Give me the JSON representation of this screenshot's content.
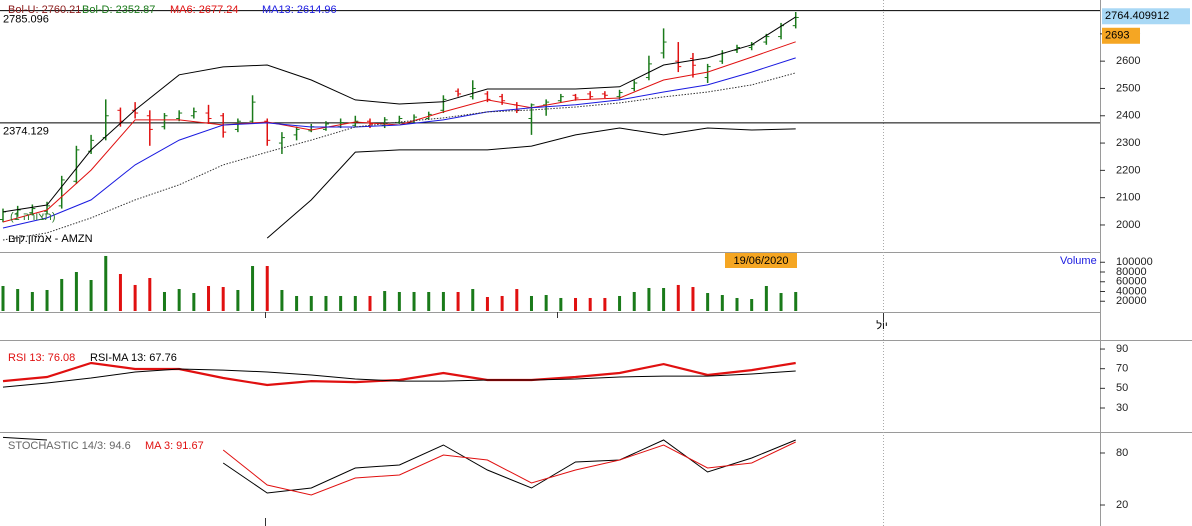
{
  "chart_data": [
    {
      "type": "ohlc",
      "up_color": "#1a7a1a",
      "down_color": "#e01010",
      "open": [
        2020,
        2040,
        2045,
        2050,
        2070,
        2160,
        2270,
        2320,
        2420,
        2420,
        2400,
        2360,
        2390,
        2400,
        2410,
        2400,
        2350,
        2380,
        2380,
        2300,
        2330,
        2345,
        2350,
        2360,
        2365,
        2380,
        2365,
        2375,
        2380,
        2390,
        2420,
        2490,
        2470,
        2480,
        2470,
        2440,
        2390,
        2440,
        2455,
        2475,
        2480,
        2480,
        2470,
        2500,
        2540,
        2630,
        2600,
        2610,
        2540,
        2600,
        2640,
        2650,
        2670,
        2690,
        2730
      ],
      "close": [
        2048,
        2055,
        2060,
        2070,
        2165,
        2275,
        2310,
        2400,
        2380,
        2410,
        2350,
        2400,
        2410,
        2415,
        2390,
        2340,
        2380,
        2450,
        2310,
        2320,
        2350,
        2360,
        2370,
        2375,
        2380,
        2370,
        2385,
        2390,
        2395,
        2405,
        2460,
        2480,
        2500,
        2460,
        2455,
        2420,
        2440,
        2450,
        2470,
        2465,
        2470,
        2475,
        2485,
        2520,
        2590,
        2670,
        2580,
        2585,
        2580,
        2630,
        2650,
        2660,
        2690,
        2730,
        2760
      ],
      "high": [
        2060,
        2070,
        2075,
        2085,
        2180,
        2290,
        2330,
        2460,
        2430,
        2450,
        2420,
        2410,
        2420,
        2430,
        2440,
        2410,
        2390,
        2475,
        2390,
        2340,
        2360,
        2370,
        2380,
        2390,
        2400,
        2390,
        2395,
        2400,
        2405,
        2415,
        2475,
        2500,
        2530,
        2490,
        2480,
        2450,
        2445,
        2460,
        2480,
        2480,
        2490,
        2490,
        2495,
        2530,
        2620,
        2720,
        2670,
        2630,
        2590,
        2640,
        2660,
        2670,
        2700,
        2740,
        2780
      ],
      "low": [
        2010,
        2030,
        2035,
        2040,
        2060,
        2150,
        2260,
        2310,
        2360,
        2390,
        2290,
        2350,
        2380,
        2390,
        2370,
        2320,
        2340,
        2370,
        2290,
        2260,
        2310,
        2340,
        2345,
        2355,
        2360,
        2355,
        2355,
        2370,
        2375,
        2385,
        2410,
        2470,
        2460,
        2450,
        2440,
        2410,
        2330,
        2400,
        2450,
        2455,
        2460,
        2465,
        2460,
        2490,
        2530,
        2610,
        2560,
        2540,
        2520,
        2590,
        2630,
        2640,
        2660,
        2680,
        2720
      ],
      "line_x": [
        0,
        3,
        6,
        9,
        12,
        15,
        18,
        21,
        24,
        27,
        30,
        33,
        36,
        39,
        42,
        45,
        48,
        51,
        54
      ],
      "series": [
        {
          "name": "Bol-U: 2760.21",
          "legend_color": "#8b1a1a",
          "color": "#000000",
          "values": [
            2048,
            2073,
            2275,
            2421,
            2550,
            2579,
            2586,
            2531,
            2458,
            2443,
            2451,
            2498,
            2498,
            2498,
            2506,
            2586,
            2612,
            2660,
            2762
          ]
        },
        {
          "name": "Bol-D: 2352.87",
          "legend_color": "#1a7a1a",
          "color": "#000000",
          "values": [
            null,
            null,
            null,
            null,
            null,
            null,
            1952,
            2092,
            2267,
            2275,
            2275,
            2275,
            2289,
            2330,
            2355,
            2330,
            2355,
            2348,
            2352
          ]
        },
        {
          "name": "MA6: 2677.24",
          "color": "#e01010",
          "values": [
            2011,
            2055,
            2201,
            2385,
            2385,
            2366,
            2377,
            2348,
            2377,
            2366,
            2414,
            2458,
            2429,
            2458,
            2465,
            2531,
            2560,
            2615,
            2671
          ]
        },
        {
          "name": "MA13: 2614.96",
          "color": "#1a1ae0",
          "values": [
            1989,
            2026,
            2092,
            2220,
            2311,
            2366,
            2374,
            2359,
            2359,
            2366,
            2385,
            2414,
            2429,
            2440,
            2458,
            2487,
            2513,
            2560,
            2612
          ]
        },
        {
          "color": "#333333",
          "dash": true,
          "values": [
            1945,
            1971,
            2026,
            2092,
            2147,
            2220,
            2267,
            2311,
            2359,
            2377,
            2392,
            2414,
            2421,
            2432,
            2447,
            2469,
            2487,
            2513,
            2557
          ]
        }
      ],
      "hlines": [
        2785.096,
        2374.129
      ],
      "price_tags": [
        {
          "value": 2764.409912,
          "color": "#a8d8f5"
        },
        {
          "value": 2693,
          "color": "#f5a623"
        }
      ],
      "notes": [
        "(תצורה 1)",
        "אמזון.קום - AMZN"
      ],
      "ylim": [
        1901,
        2824
      ],
      "yticks": [
        2000,
        2100,
        2200,
        2300,
        2400,
        2500,
        2600,
        2700
      ]
    },
    {
      "type": "bar",
      "name": "Volume",
      "date_label": "19/06/2020",
      "xlabel": "יול",
      "values": [
        51300,
        45100,
        39000,
        43100,
        65700,
        80000,
        63600,
        112900,
        75900,
        53400,
        67700,
        39000,
        45100,
        36900,
        51300,
        49200,
        43100,
        92300,
        92300,
        43100,
        30800,
        30800,
        30800,
        30800,
        30800,
        30800,
        41000,
        39000,
        39000,
        39000,
        39000,
        39000,
        45100,
        28700,
        30800,
        45100,
        30800,
        32800,
        26700,
        26700,
        26700,
        26700,
        30800,
        39000,
        47200,
        47200,
        53400,
        49200,
        36900,
        32800,
        26700,
        24600,
        51300,
        36900,
        39000
      ],
      "ylim": [
        0,
        119000
      ],
      "yticks": [
        20000,
        40000,
        60000,
        80000,
        100000
      ]
    },
    {
      "type": "line",
      "line_x": [
        0,
        3,
        6,
        9,
        12,
        15,
        18,
        21,
        24,
        27,
        30,
        33,
        36,
        39,
        42,
        45,
        48,
        51,
        54
      ],
      "series": [
        {
          "name": "RSI 13: 76.08",
          "color": "#e01010",
          "width": 2.2,
          "values": [
            57.4,
            61.5,
            75.8,
            69.7,
            69.7,
            60.5,
            53.4,
            57.4,
            56.4,
            58.5,
            65.6,
            58.5,
            58.5,
            61.5,
            65.6,
            74.7,
            63.6,
            68.6,
            75.8
          ]
        },
        {
          "name": "RSI-MA 13: 67.76",
          "color": "#000000",
          "width": 1,
          "values": [
            51.3,
            55.4,
            60.5,
            66.6,
            69.7,
            68.6,
            66.6,
            63.6,
            59.5,
            57.4,
            57.4,
            58.5,
            58.5,
            59.5,
            61.5,
            62.5,
            62.5,
            64.6,
            67.6
          ]
        }
      ],
      "ylim": [
        7.6,
        99.2
      ],
      "yticks": [
        30,
        50,
        70,
        90
      ]
    },
    {
      "type": "line",
      "line_x": [
        0,
        3,
        6,
        9,
        12,
        15,
        18,
        21,
        24,
        27,
        30,
        33,
        36,
        39,
        42,
        45,
        48,
        51,
        54
      ],
      "series": [
        {
          "name": "STOCHASTIC 14/3: 94.6",
          "legend_color": "#666666",
          "color": "#000000",
          "width": 1,
          "values": [
            98,
            95,
            null,
            77.7,
            null,
            68.5,
            33.9,
            39.6,
            62.7,
            66.2,
            89.2,
            60.4,
            39.6,
            69.6,
            71.9,
            95,
            58.1,
            74.2,
            95
          ]
        },
        {
          "name": "MA 3: 91.67",
          "color": "#e01010",
          "width": 1,
          "values": [
            null,
            null,
            null,
            null,
            null,
            83.5,
            43.1,
            31.6,
            51.2,
            54.6,
            77.7,
            71.9,
            45.4,
            60.4,
            71.9,
            89.2,
            62.7,
            68.5,
            92.7
          ]
        }
      ],
      "ylim": [
        -4.2,
        104.2
      ],
      "yticks": [
        20,
        80
      ]
    }
  ]
}
